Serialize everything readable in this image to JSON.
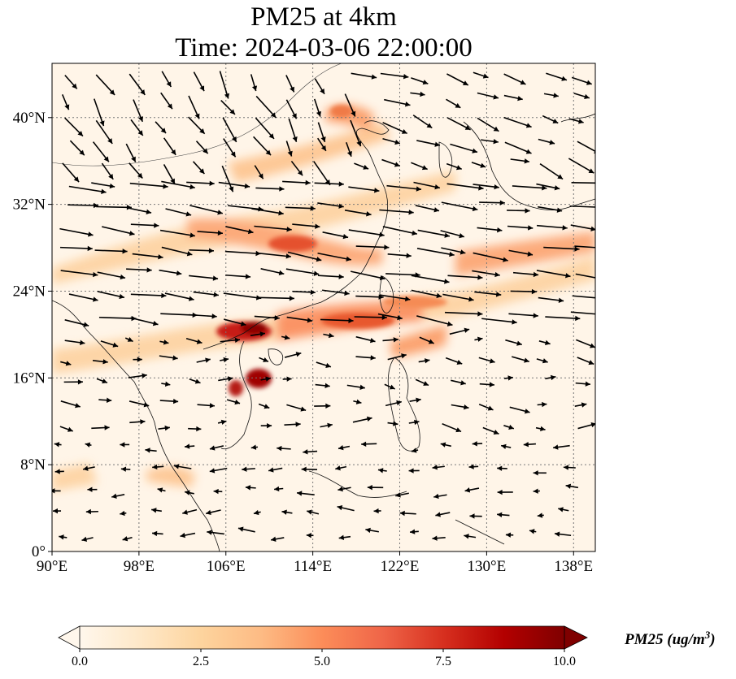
{
  "title": {
    "line1": "PM25 at 4km",
    "line2": "Time: 2024-03-06 22:00:00"
  },
  "map": {
    "lon_range": [
      90,
      140
    ],
    "lat_range": [
      0,
      45
    ],
    "x_ticks": [
      {
        "value": 90,
        "label": "90°E"
      },
      {
        "value": 98,
        "label": "98°E"
      },
      {
        "value": 106,
        "label": "106°E"
      },
      {
        "value": 114,
        "label": "114°E"
      },
      {
        "value": 122,
        "label": "122°E"
      },
      {
        "value": 130,
        "label": "130°E"
      },
      {
        "value": 138,
        "label": "138°E"
      }
    ],
    "y_ticks": [
      {
        "value": 0,
        "label": "0°"
      },
      {
        "value": 8,
        "label": "8°N"
      },
      {
        "value": 16,
        "label": "16°N"
      },
      {
        "value": 24,
        "label": "24°N"
      },
      {
        "value": 32,
        "label": "32°N"
      },
      {
        "value": 40,
        "label": "40°N"
      }
    ],
    "gridlines": true,
    "colormap": "OrRd",
    "wind_vectors": true
  },
  "colorbar": {
    "min": 0.0,
    "max": 10.0,
    "ticks": [
      {
        "value": 0.0,
        "label": "0.0"
      },
      {
        "value": 2.5,
        "label": "2.5"
      },
      {
        "value": 5.0,
        "label": "5.0"
      },
      {
        "value": 7.5,
        "label": "7.5"
      },
      {
        "value": 10.0,
        "label": "10.0"
      }
    ],
    "label": "PM25 (ug/m",
    "label_superscript": "3",
    "label_close": ")",
    "extend": "both",
    "colors": [
      "#fff7ec",
      "#fee8c8",
      "#fdd49e",
      "#fdbb84",
      "#fc8d59",
      "#ef6548",
      "#d7301f",
      "#b30000",
      "#7f0000"
    ]
  }
}
